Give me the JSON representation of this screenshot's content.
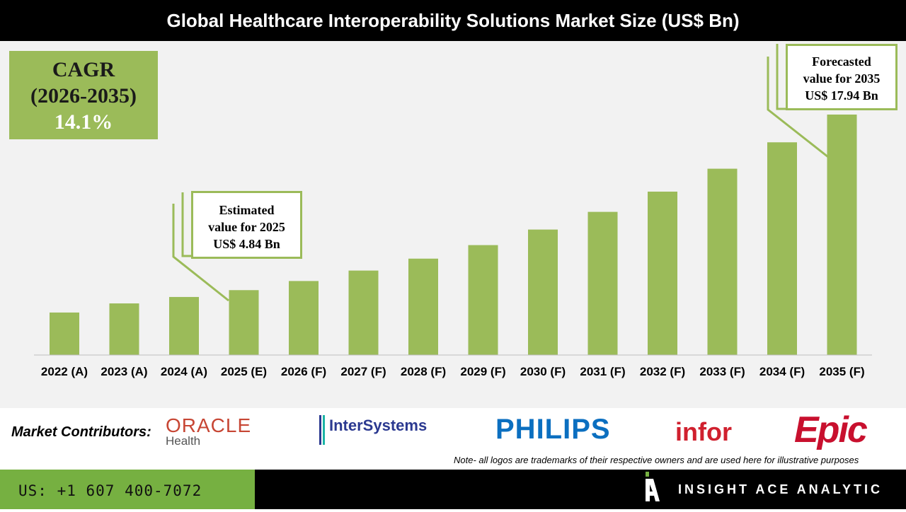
{
  "title": "Global Healthcare Interoperability Solutions Market Size (US$ Bn)",
  "cagr": {
    "label": "CAGR",
    "period": "(2026-2035)",
    "value": "14.1%"
  },
  "callouts": {
    "estimated": [
      "Estimated",
      "value for 2025",
      "US$ 4.84 Bn"
    ],
    "forecast": [
      "Forecasted",
      "value for 2035",
      "US$ 17.94 Bn"
    ]
  },
  "chart_data": {
    "type": "bar",
    "title": "Global Healthcare Interoperability Solutions Market Size (US$ Bn)",
    "categories": [
      "2022 (A)",
      "2023 (A)",
      "2024 (A)",
      "2025 (E)",
      "2026 (F)",
      "2027 (F)",
      "2028 (F)",
      "2029 (F)",
      "2030 (F)",
      "2031 (F)",
      "2032 (F)",
      "2033 (F)",
      "2034 (F)",
      "2035 (F)"
    ],
    "values": [
      3.17,
      3.85,
      4.33,
      4.84,
      5.52,
      6.3,
      7.19,
      8.2,
      9.36,
      10.68,
      12.19,
      13.9,
      15.87,
      17.94
    ],
    "ylim": [
      0,
      20
    ],
    "grid": false,
    "color": "#9bbb59"
  },
  "contributors": {
    "label": "Market Contributors:",
    "logos": [
      {
        "name": "ORACLE",
        "sub": "Health",
        "color": "#c74634"
      },
      {
        "name": "InterSystems",
        "color": "#2b3990"
      },
      {
        "name": "PHILIPS",
        "color": "#0b5ed7"
      },
      {
        "name": "infor",
        "color": "#d0202e"
      },
      {
        "name": "Epic",
        "color": "#c8102e"
      }
    ]
  },
  "note": "Note- all logos are trademarks of their respective owners and are used here for illustrative purposes",
  "footer": {
    "phone": "US: +1 607 400-7072",
    "brand": "INSIGHT ACE ANALYTIC"
  }
}
